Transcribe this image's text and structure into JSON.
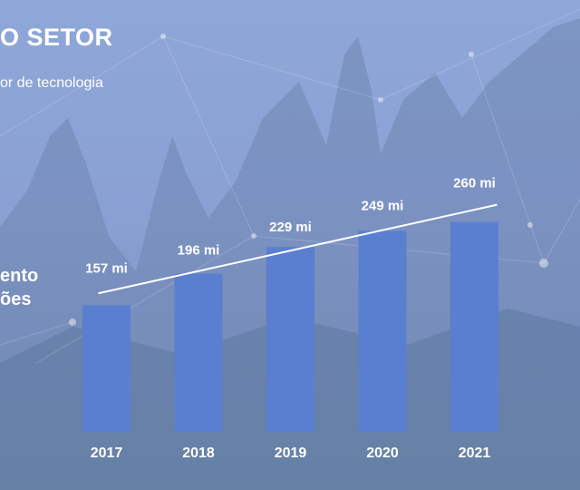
{
  "slide": {
    "title": "O SETOR",
    "subtitle": "or de tecnologia",
    "side_label_line1": "ento",
    "side_label_line2": "ões"
  },
  "colors": {
    "bar": "#5a7ed0",
    "trend_line": "#ffffff",
    "text": "#ffffff"
  },
  "chart_data": {
    "type": "bar",
    "categories": [
      "2017",
      "2018",
      "2019",
      "2020",
      "2021"
    ],
    "values": [
      157,
      196,
      229,
      249,
      260
    ],
    "data_labels": [
      "157 mi",
      "196 mi",
      "229 mi",
      "249 mi",
      "260 mi"
    ],
    "trend_line": true,
    "grid": false,
    "legend": "none"
  }
}
